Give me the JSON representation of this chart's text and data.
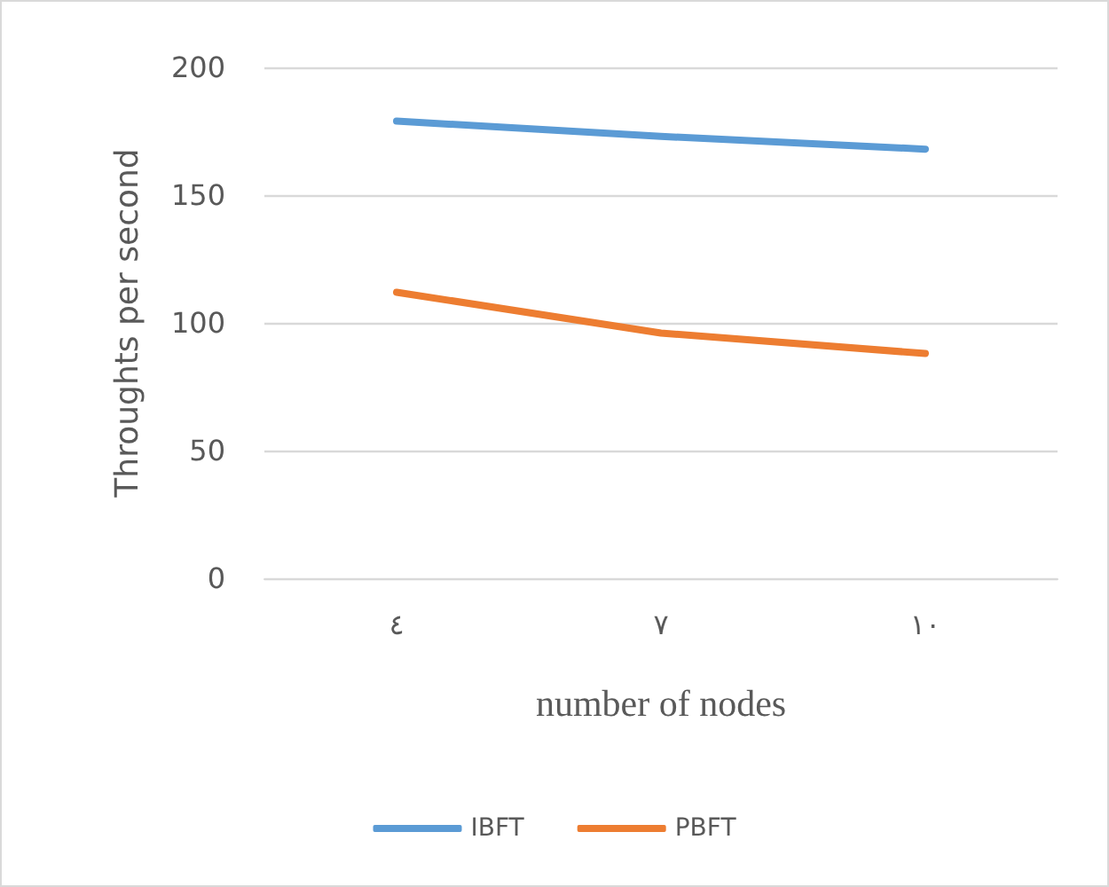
{
  "chart_data": {
    "type": "line",
    "xlabel": "number of nodes",
    "ylabel": "Throughts per second",
    "categories": [
      "٤",
      "٧",
      "١٠"
    ],
    "series": [
      {
        "name": "IBFT",
        "color": "#5b9bd5",
        "values": [
          179,
          173,
          168
        ]
      },
      {
        "name": "PBFT",
        "color": "#ed7d31",
        "values": [
          112,
          96,
          88
        ]
      }
    ],
    "ylim": [
      0,
      200
    ],
    "yticks": [
      0,
      50,
      100,
      150,
      200
    ],
    "grid": "y",
    "legend": "bottom",
    "marker": "none",
    "line_style": "solid"
  }
}
